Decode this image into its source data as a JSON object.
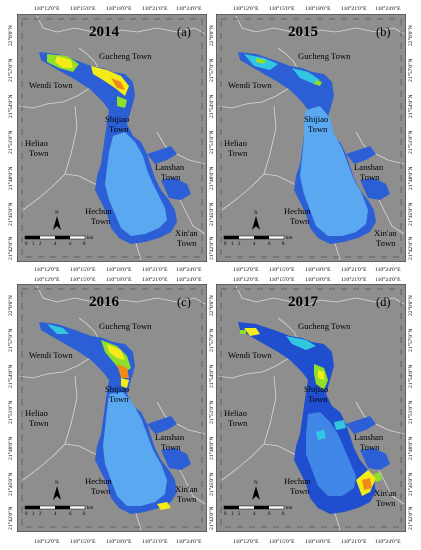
{
  "panels": [
    {
      "year": "2014",
      "letter": "(a)"
    },
    {
      "year": "2015",
      "letter": "(b)"
    },
    {
      "year": "2016",
      "letter": "(c)"
    },
    {
      "year": "2017",
      "letter": "(d)"
    }
  ],
  "lon_ticks": [
    "110°12'0\"E",
    "110°15'0\"E",
    "110°18'0\"E",
    "110°21'0\"E",
    "110°24'0\"E"
  ],
  "lat_ticks": [
    "22°0'0\"N",
    "21°57'0\"N",
    "21°54'0\"N",
    "21°51'0\"N",
    "21°48'0\"N",
    "21°45'0\"N",
    "21°42'0\"N"
  ],
  "towns": {
    "gucheng": "Gucheng Town",
    "wendi": "Wendi Town",
    "shijiao_1": "Shijiao",
    "shijiao_2": "Town",
    "heliao_1": "Heliao",
    "heliao_2": "Town",
    "lanshan_1": "Lanshan",
    "lanshan_2": "Town",
    "hechun_1": "Hechun",
    "hechun_2": "Town",
    "xinan_1": "Xin'an",
    "xinan_2": "Town"
  },
  "north_arrow": "N",
  "scale_bar": {
    "labels": [
      "0",
      "1",
      "2",
      "4",
      "6",
      "8"
    ],
    "unit": "km"
  },
  "colors": {
    "land": "#8e8e8e",
    "boundary": "#d9d9d9",
    "water_deep": "#2c5fd6",
    "water_light": "#5aa9f0",
    "class_cyan": "#33c6e0",
    "class_green": "#8fdf2a",
    "class_yellow": "#f5ec17",
    "class_orange": "#f08a16"
  }
}
